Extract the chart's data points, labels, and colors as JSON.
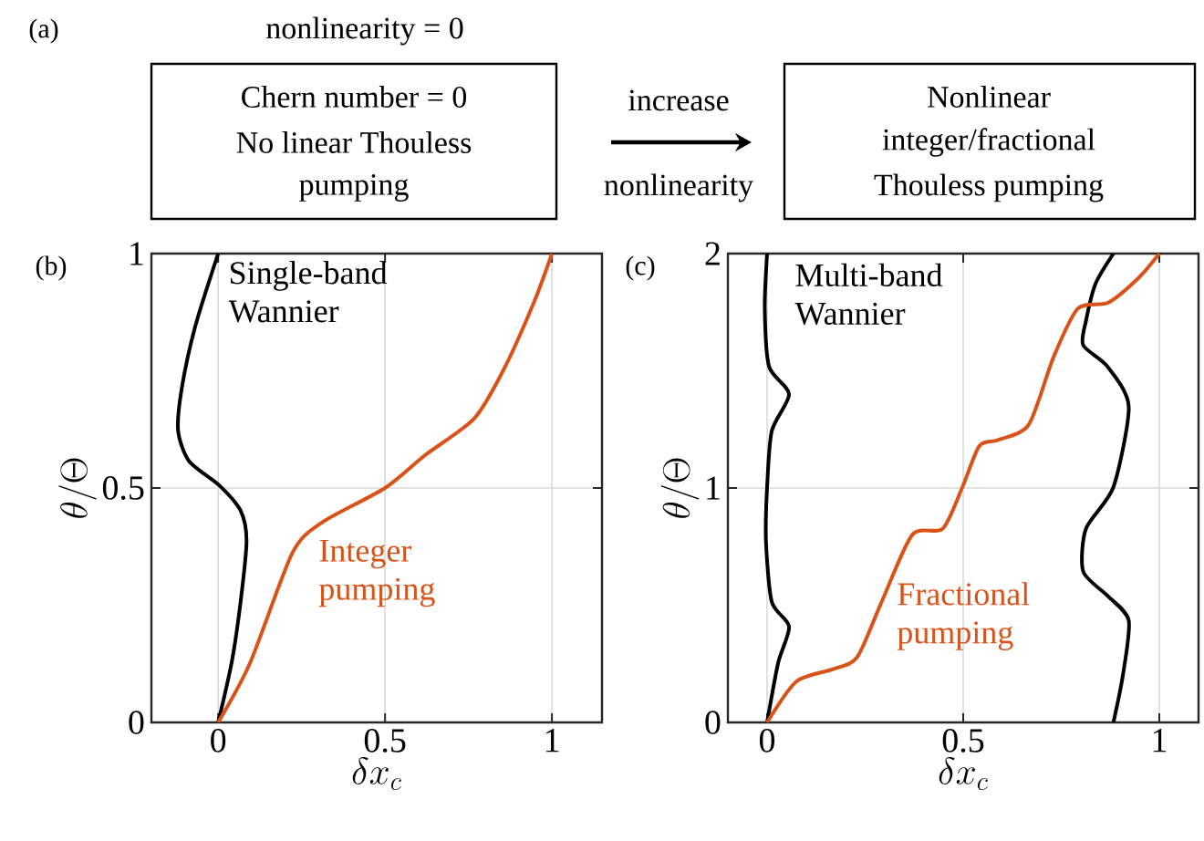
{
  "chart_data": [
    {
      "type": "other",
      "title": "(a)",
      "annotations": [
        "nonlinearity = 0",
        "Chern number = 0",
        "No linear Thouless",
        "pumping",
        "increase",
        "nonlinearity",
        "Nonlinear",
        "integer/fractional",
        "Thouless pumping"
      ]
    },
    {
      "type": "line",
      "title": "(b)",
      "xlabel": "\\delta x_c",
      "ylabel": "\\theta/\\Theta",
      "xlim": [
        -0.2,
        1.15
      ],
      "ylim": [
        0,
        1
      ],
      "xticks": [
        0,
        0.5,
        1
      ],
      "yticks": [
        0,
        0.5,
        1
      ],
      "grid": true,
      "series": [
        {
          "name": "Single-band Wannier",
          "color": "#000000",
          "x": [
            0,
            0.04,
            0.067,
            0.085,
            0.067,
            0.004,
            -0.087,
            -0.12,
            -0.109,
            -0.069,
            0
          ],
          "values": [
            0,
            0.126,
            0.256,
            0.387,
            0.452,
            0.505,
            0.557,
            0.622,
            0.713,
            0.844,
            1
          ]
        },
        {
          "name": "Integer pumping",
          "color": "#d95319",
          "x": [
            0,
            0.095,
            0.222,
            0.31,
            0.5,
            0.62,
            0.767,
            0.855,
            0.946,
            1
          ],
          "values": [
            0,
            0.126,
            0.361,
            0.426,
            0.5,
            0.57,
            0.648,
            0.752,
            0.896,
            1
          ]
        }
      ]
    },
    {
      "type": "line",
      "title": "(c)",
      "xlabel": "\\delta x_c",
      "ylabel": "\\theta/\\Theta",
      "xlim": [
        -0.1,
        1.1
      ],
      "ylim": [
        0,
        2
      ],
      "xticks": [
        0,
        0.5,
        1
      ],
      "yticks": [
        0,
        1,
        2
      ],
      "grid": true,
      "series": [
        {
          "name": "Multi-band Wannier",
          "color": "#000000",
          "x": [
            0,
            0.028,
            0.056,
            0.012,
            -0.003,
            0,
            0.012,
            0.056,
            0.005,
            -0.006,
            0
          ],
          "values": [
            0,
            0.253,
            0.409,
            0.514,
            0.774,
            1.004,
            1.244,
            1.4,
            1.518,
            1.765,
            2
          ]
        },
        {
          "color": "#000000",
          "x": [
            0.883,
            0.907,
            0.922,
            0.868,
            0.806,
            0.813,
            0.883,
            0.922,
            0.868,
            0.806,
            0.813,
            0.837,
            0.883
          ],
          "values": [
            0,
            0.2,
            0.435,
            0.54,
            0.644,
            0.827,
            1.004,
            1.348,
            1.518,
            1.609,
            1.713,
            1.87,
            2
          ]
        },
        {
          "name": "Fractional pumping",
          "color": "#d95319",
          "x": [
            0,
            0.075,
            0.168,
            0.23,
            0.292,
            0.37,
            0.448,
            0.498,
            0.541,
            0.589,
            0.667,
            0.73,
            0.792,
            0.87,
            0.947,
            1
          ],
          "values": [
            0,
            0.175,
            0.227,
            0.279,
            0.514,
            0.8,
            0.827,
            1.004,
            1.179,
            1.205,
            1.27,
            1.557,
            1.765,
            1.791,
            1.896,
            2
          ]
        }
      ]
    }
  ]
}
